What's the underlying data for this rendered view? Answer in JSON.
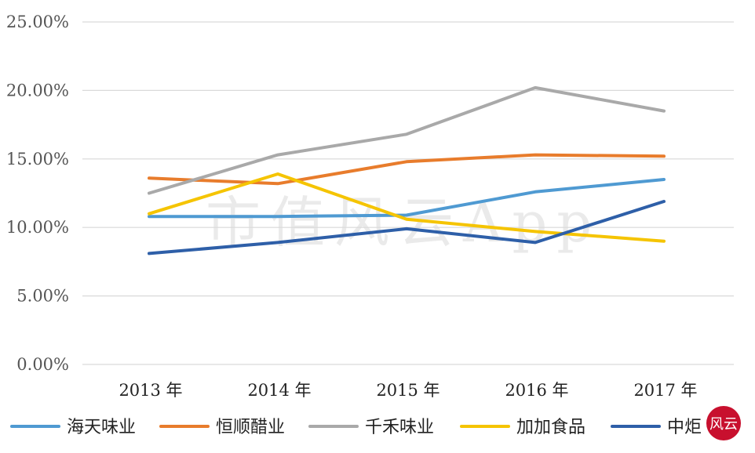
{
  "chart_data": {
    "type": "line",
    "title": "",
    "xlabel": "",
    "ylabel": "",
    "categories": [
      "2013 年",
      "2014 年",
      "2015 年",
      "2016 年",
      "2017 年"
    ],
    "y_ticks": [
      "0.00%",
      "5.00%",
      "10.00%",
      "15.00%",
      "20.00%",
      "25.00%"
    ],
    "ylim": [
      0,
      25
    ],
    "grid": true,
    "legend_position": "bottom",
    "series": [
      {
        "name": "海天味业",
        "color": "#4f9ad2",
        "values": [
          10.8,
          10.8,
          10.9,
          12.6,
          13.5
        ]
      },
      {
        "name": "恒顺醋业",
        "color": "#e87c2c",
        "values": [
          13.6,
          13.2,
          14.8,
          15.3,
          15.2
        ]
      },
      {
        "name": "千禾味业",
        "color": "#a9a9a9",
        "values": [
          12.5,
          15.3,
          16.8,
          20.2,
          18.5
        ]
      },
      {
        "name": "加加食品",
        "color": "#f5c400",
        "values": [
          11.0,
          13.9,
          10.6,
          9.7,
          9.0
        ]
      },
      {
        "name": "中炬高新",
        "color": "#2e5fa8",
        "values": [
          8.1,
          8.9,
          9.9,
          8.9,
          11.9
        ]
      }
    ],
    "legend_visible_labels": [
      "海天味业",
      "恒顺醋业",
      "千禾味业",
      "加加食品",
      "中炬"
    ]
  },
  "watermark": "市值风云App",
  "seal": "风云"
}
